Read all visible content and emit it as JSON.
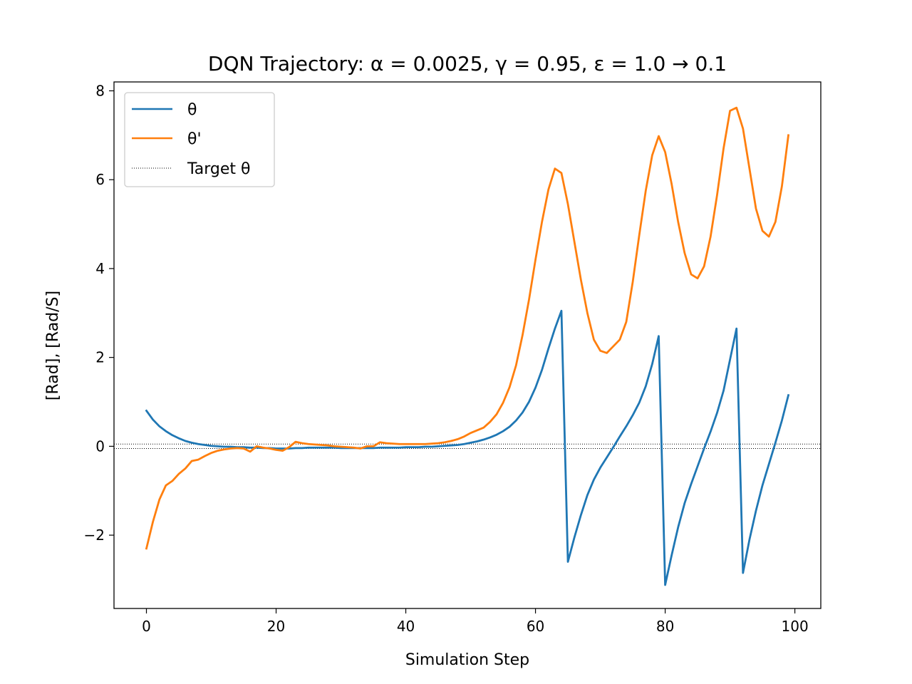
{
  "chart_data": {
    "type": "line",
    "title": "DQN Trajectory: α = 0.0025, γ = 0.95, ε = 1.0 → 0.1",
    "xlabel": "Simulation Step",
    "ylabel": "[Rad], [Rad/S]",
    "xlim": [
      -5,
      104
    ],
    "ylim": [
      -3.65,
      8.2
    ],
    "xticks": [
      0,
      20,
      40,
      60,
      80,
      100
    ],
    "yticks": [
      -2,
      0,
      2,
      4,
      6,
      8
    ],
    "ytick_labels": [
      "−2",
      "0",
      "2",
      "4",
      "6",
      "8"
    ],
    "grid": false,
    "legend_position": "top-left",
    "series": [
      {
        "name": "θ",
        "color": "#1f77b4",
        "style": "solid",
        "x": [
          0,
          1,
          2,
          3,
          4,
          5,
          6,
          7,
          8,
          9,
          10,
          11,
          12,
          13,
          14,
          15,
          16,
          17,
          18,
          19,
          20,
          21,
          22,
          23,
          24,
          25,
          26,
          27,
          28,
          29,
          30,
          31,
          32,
          33,
          34,
          35,
          36,
          37,
          38,
          39,
          40,
          41,
          42,
          43,
          44,
          45,
          46,
          47,
          48,
          49,
          50,
          51,
          52,
          53,
          54,
          55,
          56,
          57,
          58,
          59,
          60,
          61,
          62,
          63,
          64,
          65,
          66,
          67,
          68,
          69,
          70,
          71,
          72,
          73,
          74,
          75,
          76,
          77,
          78,
          79,
          80,
          81,
          82,
          83,
          84,
          85,
          86,
          87,
          88,
          89,
          90,
          91,
          92,
          93,
          94,
          95,
          96,
          97,
          98,
          99
        ],
        "values": [
          0.8,
          0.6,
          0.45,
          0.34,
          0.25,
          0.18,
          0.12,
          0.08,
          0.05,
          0.03,
          0.01,
          0.0,
          -0.01,
          -0.01,
          -0.02,
          -0.02,
          -0.03,
          -0.03,
          -0.04,
          -0.04,
          -0.05,
          -0.05,
          -0.05,
          -0.04,
          -0.04,
          -0.03,
          -0.03,
          -0.03,
          -0.03,
          -0.03,
          -0.04,
          -0.04,
          -0.04,
          -0.04,
          -0.04,
          -0.04,
          -0.03,
          -0.03,
          -0.03,
          -0.03,
          -0.02,
          -0.02,
          -0.02,
          -0.01,
          -0.01,
          0.0,
          0.01,
          0.02,
          0.03,
          0.05,
          0.08,
          0.11,
          0.15,
          0.2,
          0.26,
          0.34,
          0.44,
          0.58,
          0.76,
          1.0,
          1.32,
          1.72,
          2.2,
          2.65,
          3.05,
          -2.6,
          -2.05,
          -1.55,
          -1.1,
          -0.75,
          -0.48,
          -0.25,
          -0.02,
          0.22,
          0.45,
          0.7,
          0.98,
          1.35,
          1.85,
          2.48,
          -3.12,
          -2.45,
          -1.82,
          -1.28,
          -0.85,
          -0.45,
          -0.05,
          0.33,
          0.75,
          1.25,
          1.95,
          2.65,
          -2.85,
          -2.1,
          -1.45,
          -0.88,
          -0.4,
          0.08,
          0.58,
          1.15
        ]
      },
      {
        "name": "θ'",
        "color": "#ff7f0e",
        "style": "solid",
        "x": [
          0,
          1,
          2,
          3,
          4,
          5,
          6,
          7,
          8,
          9,
          10,
          11,
          12,
          13,
          14,
          15,
          16,
          17,
          18,
          19,
          20,
          21,
          22,
          23,
          24,
          25,
          26,
          27,
          28,
          29,
          30,
          31,
          32,
          33,
          34,
          35,
          36,
          37,
          38,
          39,
          40,
          41,
          42,
          43,
          44,
          45,
          46,
          47,
          48,
          49,
          50,
          51,
          52,
          53,
          54,
          55,
          56,
          57,
          58,
          59,
          60,
          61,
          62,
          63,
          64,
          65,
          66,
          67,
          68,
          69,
          70,
          71,
          72,
          73,
          74,
          75,
          76,
          77,
          78,
          79,
          80,
          81,
          82,
          83,
          84,
          85,
          86,
          87,
          88,
          89,
          90,
          91,
          92,
          93,
          94,
          95,
          96,
          97,
          98,
          99
        ],
        "values": [
          -2.3,
          -1.7,
          -1.2,
          -0.88,
          -0.78,
          -0.62,
          -0.5,
          -0.33,
          -0.3,
          -0.22,
          -0.15,
          -0.1,
          -0.07,
          -0.05,
          -0.04,
          -0.05,
          -0.12,
          0.0,
          -0.03,
          -0.05,
          -0.08,
          -0.1,
          -0.02,
          0.1,
          0.07,
          0.05,
          0.04,
          0.03,
          0.02,
          0.0,
          -0.01,
          -0.02,
          -0.03,
          -0.05,
          0.0,
          0.0,
          0.09,
          0.07,
          0.06,
          0.05,
          0.05,
          0.05,
          0.05,
          0.05,
          0.06,
          0.07,
          0.09,
          0.12,
          0.16,
          0.22,
          0.3,
          0.36,
          0.42,
          0.55,
          0.72,
          0.98,
          1.33,
          1.82,
          2.5,
          3.3,
          4.2,
          5.05,
          5.78,
          6.25,
          6.15,
          5.45,
          4.6,
          3.75,
          3.0,
          2.4,
          2.15,
          2.1,
          2.25,
          2.4,
          2.8,
          3.7,
          4.75,
          5.75,
          6.55,
          6.98,
          6.62,
          5.9,
          5.05,
          4.35,
          3.87,
          3.78,
          4.05,
          4.72,
          5.65,
          6.7,
          7.55,
          7.62,
          7.15,
          6.25,
          5.35,
          4.85,
          4.72,
          5.05,
          5.85,
          7.0
        ]
      },
      {
        "name": "Target θ",
        "color": "#000000",
        "style": "dotted",
        "y_const": [
          0.05,
          -0.05
        ]
      }
    ]
  }
}
